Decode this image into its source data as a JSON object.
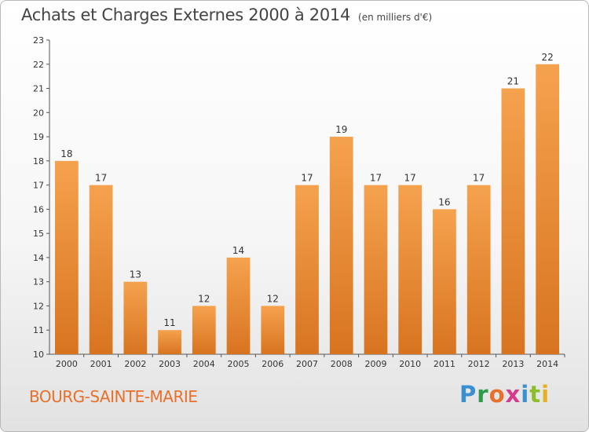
{
  "title": {
    "main": "Achats et Charges Externes 2000 à 2014",
    "unit": "(en milliers d'€)"
  },
  "footer": {
    "commune": "BOURG-SAINTE-MARIE",
    "logo_letters": [
      "P",
      "r",
      "o",
      "x",
      "i",
      "t",
      "i"
    ]
  },
  "colors": {
    "bar_light": "#f5a24e",
    "bar_dark": "#d87420",
    "commune_text": "#e8702a",
    "logo": [
      "#3a8fd0",
      "#2e9a4a",
      "#e8702a",
      "#d63a8a",
      "#3a8fd0",
      "#8dbd2a",
      "#e8b020"
    ]
  },
  "chart_data": {
    "type": "bar",
    "categories": [
      "2000",
      "2001",
      "2002",
      "2003",
      "2004",
      "2005",
      "2006",
      "2007",
      "2008",
      "2009",
      "2010",
      "2011",
      "2012",
      "2013",
      "2014"
    ],
    "values": [
      18,
      17,
      13,
      11,
      12,
      14,
      12,
      17,
      19,
      17,
      17,
      16,
      17,
      21,
      22
    ],
    "data_labels": [
      "18",
      "17",
      "13",
      "11",
      "12",
      "14",
      "12",
      "17",
      "19",
      "17",
      "17",
      "16",
      "17",
      "21",
      "22"
    ],
    "ylim": [
      10,
      23
    ],
    "yticks": [
      "10",
      "11",
      "12",
      "13",
      "14",
      "15",
      "16",
      "17",
      "18",
      "19",
      "20",
      "21",
      "22",
      "23"
    ],
    "grid": false,
    "title": "Achats et Charges Externes 2000 à 2014",
    "xlabel": "",
    "ylabel": ""
  }
}
